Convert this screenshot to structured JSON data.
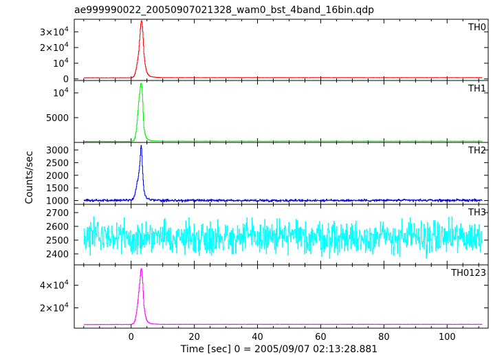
{
  "chart_data": {
    "type": "line",
    "title": "ae999990022_20050907021328_wam0_bst_4band_16bin.qdp",
    "xlabel": "Time [sec] 0 = 2005/09/07 02:13:28.881",
    "ylabel": "Counts/sec",
    "xlim": [
      -18,
      113
    ],
    "x_ticks": [
      0,
      20,
      40,
      60,
      80,
      100
    ],
    "x_tick_labels": [
      "0",
      "20",
      "40",
      "60",
      "80",
      "100"
    ],
    "grid": false,
    "panels": [
      {
        "label": "TH0",
        "color": "#ff0000",
        "ylim": [
          -1000,
          38000
        ],
        "y_ticks": [
          0,
          10000,
          20000,
          30000
        ],
        "y_tick_labels": [
          {
            "base": "0",
            "exp": ""
          },
          {
            "base": "10",
            "exp": "4"
          },
          {
            "base": "2×10",
            "exp": "4"
          },
          {
            "base": "3×10",
            "exp": "4"
          }
        ],
        "series": {
          "x": [
            -15,
            0,
            0.8,
            1.2,
            1.6,
            2.0,
            2.4,
            2.6,
            2.8,
            3.0,
            3.2,
            3.4,
            3.6,
            3.8,
            4.0,
            4.4,
            4.8,
            5.2,
            5.6,
            6.0,
            7.0,
            8.0,
            10,
            30,
            60,
            90,
            111
          ],
          "y": [
            700,
            700,
            1500,
            3500,
            7000,
            12000,
            18000,
            24000,
            30000,
            35000,
            37500,
            36000,
            31000,
            24000,
            16000,
            9000,
            5000,
            3200,
            2200,
            1600,
            1200,
            1000,
            800,
            800,
            800,
            800,
            800
          ]
        }
      },
      {
        "label": "TH1",
        "color": "#00ee00",
        "ylim": [
          0,
          12500
        ],
        "y_ticks": [
          5000,
          10000
        ],
        "y_tick_labels": [
          {
            "base": "5000",
            "exp": ""
          },
          {
            "base": "10",
            "exp": "4"
          }
        ],
        "series": {
          "x": [
            -15,
            0,
            0.8,
            1.2,
            1.6,
            2.0,
            2.4,
            2.8,
            3.0,
            3.2,
            3.4,
            3.6,
            3.8,
            4.0,
            4.4,
            4.8,
            5.2,
            6.0,
            7.0,
            10,
            111
          ],
          "y": [
            200,
            200,
            400,
            1000,
            2500,
            5500,
            8500,
            10800,
            11800,
            12000,
            11000,
            8500,
            5200,
            3000,
            1600,
            900,
            600,
            400,
            300,
            250,
            250
          ]
        }
      },
      {
        "label": "TH2",
        "color": "#0000dd",
        "ylim": [
          850,
          3300
        ],
        "y_ticks": [
          1000,
          1500,
          2000,
          2500,
          3000
        ],
        "y_tick_labels": [
          {
            "base": "1000",
            "exp": ""
          },
          {
            "base": "1500",
            "exp": ""
          },
          {
            "base": "2000",
            "exp": ""
          },
          {
            "base": "2500",
            "exp": ""
          },
          {
            "base": "3000",
            "exp": ""
          }
        ],
        "series": {
          "x": [
            -15,
            0,
            0.8,
            1.2,
            1.6,
            2.0,
            2.4,
            2.8,
            3.0,
            3.2,
            3.4,
            3.6,
            3.8,
            4.0,
            4.4,
            4.8,
            5.6,
            7,
            10,
            111
          ],
          "y": [
            1000,
            1020,
            1100,
            1300,
            1550,
            1800,
            2100,
            2600,
            3100,
            3180,
            2700,
            2100,
            1700,
            1400,
            1200,
            1100,
            1050,
            1020,
            1000,
            1010
          ]
        },
        "baseline": 1000,
        "noise": 40
      },
      {
        "label": "TH3",
        "color": "#00ffff",
        "ylim": [
          2320,
          2760
        ],
        "y_ticks": [
          2400,
          2500,
          2600,
          2700
        ],
        "y_tick_labels": [
          {
            "base": "2400",
            "exp": ""
          },
          {
            "base": "2500",
            "exp": ""
          },
          {
            "base": "2600",
            "exp": ""
          },
          {
            "base": "2700",
            "exp": ""
          }
        ],
        "series": {
          "x": [
            -15,
            111
          ],
          "y": [
            2520,
            2520
          ]
        },
        "baseline": 2520,
        "noise": 110
      },
      {
        "label": "TH0123",
        "color": "#ff00ff",
        "ylim": [
          2000,
          58000
        ],
        "y_ticks": [
          20000,
          40000
        ],
        "y_tick_labels": [
          {
            "base": "2×10",
            "exp": "4"
          },
          {
            "base": "4×10",
            "exp": "4"
          }
        ],
        "series": {
          "x": [
            -15,
            0,
            0.8,
            1.2,
            1.6,
            2.0,
            2.4,
            2.8,
            3.0,
            3.2,
            3.4,
            3.6,
            3.8,
            4.0,
            4.4,
            4.8,
            5.2,
            6.0,
            7.0,
            10,
            111
          ],
          "y": [
            5200,
            5300,
            6500,
            9000,
            15000,
            24000,
            35000,
            46000,
            53000,
            55500,
            52000,
            43000,
            32000,
            22000,
            14000,
            9500,
            7500,
            6200,
            5700,
            5400,
            5400
          ]
        }
      }
    ]
  }
}
